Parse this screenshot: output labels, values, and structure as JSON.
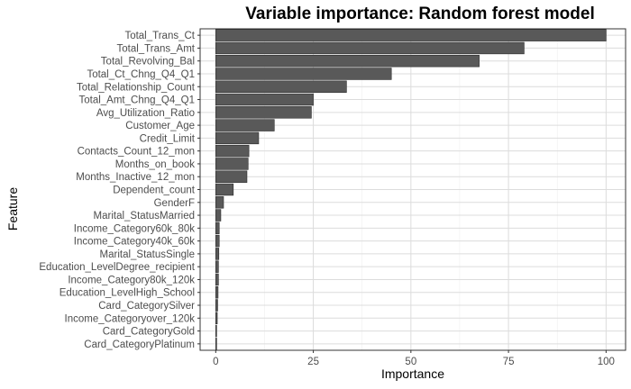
{
  "chart_data": {
    "type": "bar",
    "orientation": "horizontal",
    "title": "Variable importance: Random forest model",
    "xlabel": "Importance",
    "ylabel": "Feature",
    "xlim": [
      -4,
      105
    ],
    "x_ticks": [
      0,
      25,
      50,
      75,
      100
    ],
    "grid": true,
    "bar_color": "#595959",
    "categories": [
      "Total_Trans_Ct",
      "Total_Trans_Amt",
      "Total_Revolving_Bal",
      "Total_Ct_Chng_Q4_Q1",
      "Total_Relationship_Count",
      "Total_Amt_Chng_Q4_Q1",
      "Avg_Utilization_Ratio",
      "Customer_Age",
      "Credit_Limit",
      "Contacts_Count_12_mon",
      "Months_on_book",
      "Months_Inactive_12_mon",
      "Dependent_count",
      "GenderF",
      "Marital_StatusMarried",
      "Income_Category60k_80k",
      "Income_Category40k_60k",
      "Marital_StatusSingle",
      "Education_LevelDegree_recipient",
      "Income_Category80k_120k",
      "Education_LevelHigh_School",
      "Card_CategorySilver",
      "Income_Categoryover_120k",
      "Card_CategoryGold",
      "Card_CategoryPlatinum"
    ],
    "values": [
      100,
      79,
      67.5,
      45,
      33.5,
      25,
      24.5,
      15,
      11,
      8.5,
      8.3,
      8,
      4.5,
      2,
      1.3,
      0.9,
      0.9,
      0.8,
      0.7,
      0.7,
      0.6,
      0.5,
      0.4,
      0.2,
      0.1
    ]
  }
}
